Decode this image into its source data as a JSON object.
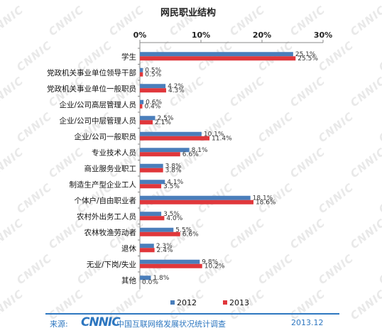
{
  "chart_data": {
    "type": "bar",
    "orientation": "horizontal",
    "title": "网民职业结构",
    "categories": [
      "学生",
      "党政机关事业单位领导干部",
      "党政机关事业单位一般职员",
      "企业/公司高层管理人员",
      "企业/公司中层管理人员",
      "企业/公司一般职员",
      "专业技术人员",
      "商业服务业职工",
      "制造生产型企业工人",
      "个体户/自由职业者",
      "农村外出务工人员",
      "农林牧渔劳动者",
      "退休",
      "无业/下岗/失业",
      "其他"
    ],
    "series": [
      {
        "name": "2012",
        "color": "#4a7ebb",
        "values": [
          25.1,
          0.5,
          4.2,
          0.6,
          2.5,
          10.1,
          8.1,
          3.8,
          4.1,
          18.1,
          3.5,
          5.5,
          2.3,
          9.8,
          1.8
        ],
        "labels": [
          "25.1%",
          "0.5%",
          "4.2%",
          "0.6%",
          "2.5%",
          "10.1%",
          "8.1%",
          "3.8%",
          "4.1%",
          "18.1%",
          "3.5%",
          "5.5%",
          "2.3%",
          "9.8%",
          "1.8%"
        ]
      },
      {
        "name": "2013",
        "color": "#e0373b",
        "values": [
          25.5,
          0.5,
          4.3,
          0.4,
          2.1,
          11.4,
          6.6,
          3.8,
          3.5,
          18.6,
          4.0,
          6.6,
          2.4,
          10.2,
          0.0
        ],
        "labels": [
          "25.5%",
          "0.5%",
          "4.3%",
          "0.4%",
          "2.1%",
          "11.4%",
          "6.6%",
          "3.8%",
          "3.5%",
          "18.6%",
          "4.0%",
          "6.6%",
          "2.4%",
          "10.2%",
          "0.0%"
        ]
      }
    ],
    "xlim": [
      0,
      30
    ],
    "xticks": [
      0,
      10,
      20,
      30
    ],
    "xtick_labels": [
      "0%",
      "10%",
      "20%",
      "30%"
    ],
    "axis_position": "top",
    "legend_position": "bottom",
    "grid": false
  },
  "footer": {
    "source_label": "来源:",
    "logo_text": "CNNIC",
    "org_text": "中国互联网络发展状况统计调查",
    "date": "2013.12"
  },
  "watermark": {
    "text": "CNNIC"
  }
}
